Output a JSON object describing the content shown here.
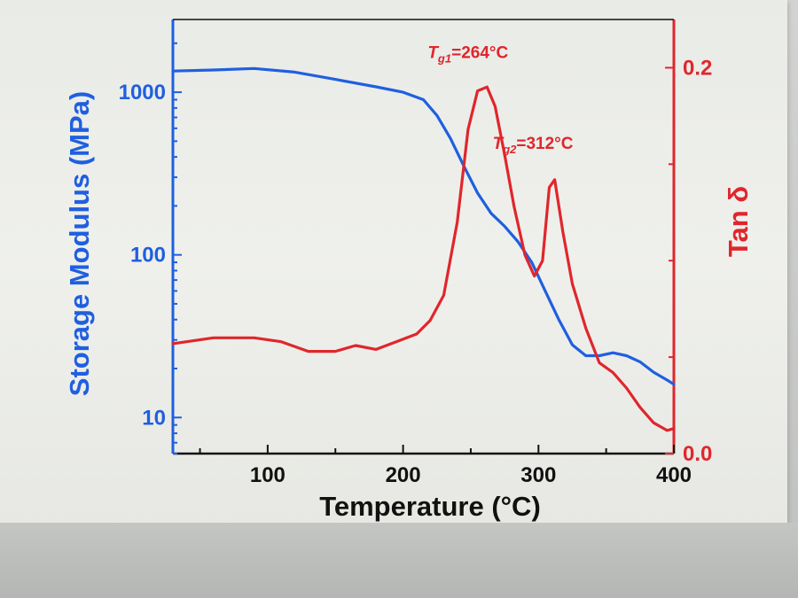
{
  "chart_data": {
    "type": "line",
    "title": "",
    "xlabel": "Temperature (°C)",
    "ylabel_left": "Storage Modulus (MPa)",
    "ylabel_right": "Tan δ",
    "xlim": [
      30,
      400
    ],
    "ylim_left": [
      6,
      2800
    ],
    "yscale_left": "log",
    "ylim_right": [
      0,
      0.225
    ],
    "x_ticks": [
      100,
      200,
      300,
      400
    ],
    "y_left_ticks": [
      {
        "value": 10,
        "label": "10"
      },
      {
        "value": 100,
        "label": "100"
      },
      {
        "value": 1000,
        "label": "1000"
      }
    ],
    "y_right_ticks": [
      {
        "value": 0.0,
        "label": "0.0"
      },
      {
        "value": 0.2,
        "label": "0.2"
      }
    ],
    "grid": false,
    "legend": "none",
    "series": [
      {
        "color": "#1f5fe0",
        "axis": "left",
        "x": [
          30,
          60,
          90,
          120,
          150,
          180,
          200,
          215,
          225,
          235,
          245,
          255,
          265,
          275,
          285,
          295,
          305,
          315,
          325,
          335,
          345,
          355,
          365,
          375,
          385,
          395,
          400
        ],
        "y": [
          1350,
          1370,
          1400,
          1330,
          1200,
          1080,
          1000,
          900,
          720,
          520,
          350,
          240,
          180,
          150,
          120,
          90,
          60,
          40,
          28,
          24,
          24,
          25,
          24,
          22,
          19,
          17,
          16
        ]
      },
      {
        "color": "#e0262c",
        "axis": "right",
        "x": [
          30,
          60,
          90,
          110,
          130,
          150,
          165,
          180,
          195,
          210,
          220,
          230,
          240,
          248,
          255,
          262,
          268,
          275,
          282,
          290,
          297,
          303,
          308,
          312,
          318,
          325,
          335,
          345,
          355,
          365,
          375,
          385,
          395,
          400
        ],
        "y": [
          0.057,
          0.06,
          0.06,
          0.058,
          0.053,
          0.053,
          0.056,
          0.054,
          0.058,
          0.062,
          0.069,
          0.082,
          0.12,
          0.168,
          0.188,
          0.19,
          0.18,
          0.155,
          0.128,
          0.103,
          0.092,
          0.1,
          0.138,
          0.142,
          0.115,
          0.088,
          0.065,
          0.047,
          0.042,
          0.034,
          0.024,
          0.016,
          0.012,
          0.013
        ]
      }
    ],
    "annotations": [
      {
        "id": "tg1",
        "label": "T",
        "sub": "g1",
        "text": "=264°C",
        "x": 264,
        "y_right": 0.205
      },
      {
        "id": "tg2",
        "label": "T",
        "sub": "g2",
        "text": "=312°C",
        "x": 312,
        "y_right": 0.158
      }
    ],
    "colors": {
      "left_axis": "#1f5fe0",
      "right_axis": "#e0262c",
      "frame": "#111111"
    }
  }
}
